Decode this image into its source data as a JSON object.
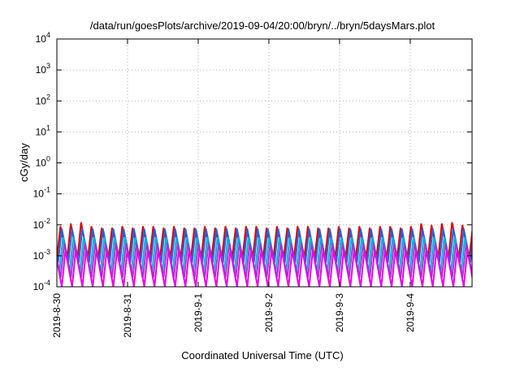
{
  "chart_data": {
    "type": "line",
    "title": "/data/run/goesPlots/archive/2019-09-04/20:00/bryn/../bryn/5daysMars.plot",
    "xlabel": "Coordinated Universal Time (UTC)",
    "ylabel": "cGy/day",
    "yscale": "log",
    "ylim": [
      0.0001,
      10000
    ],
    "y_ticks": [
      {
        "value": 10000,
        "base": "10",
        "exp": "4"
      },
      {
        "value": 1000,
        "base": "10",
        "exp": "3"
      },
      {
        "value": 100,
        "base": "10",
        "exp": "2"
      },
      {
        "value": 10,
        "base": "10",
        "exp": "1"
      },
      {
        "value": 1,
        "base": "10",
        "exp": "0"
      },
      {
        "value": 0.1,
        "base": "10",
        "exp": "-1"
      },
      {
        "value": 0.01,
        "base": "10",
        "exp": "-2"
      },
      {
        "value": 0.001,
        "base": "10",
        "exp": "-3"
      },
      {
        "value": 0.0001,
        "base": "10",
        "exp": "-4"
      }
    ],
    "x_range": [
      "2019-08-30T00:00",
      "2019-09-04T21:00"
    ],
    "x_ticks": [
      "2019-8-30",
      "2019-8-31",
      "2019-9-1",
      "2019-9-2",
      "2019-9-3",
      "2019-9-4"
    ],
    "grid": true,
    "sawtooth_period_hours": 3.5,
    "series": [
      {
        "color": "#e00000",
        "peak": 0.011,
        "trough": 0.0008,
        "peaks": [
          0.008,
          0.009,
          0.011,
          0.012,
          0.009,
          0.008,
          0.008,
          0.009,
          0.008,
          0.009,
          0.009,
          0.008,
          0.009,
          0.008,
          0.008,
          0.009,
          0.008,
          0.009,
          0.008,
          0.009,
          0.009,
          0.008,
          0.009,
          0.008,
          0.009,
          0.009,
          0.008,
          0.008,
          0.009,
          0.008,
          0.009,
          0.008,
          0.009,
          0.009,
          0.008,
          0.009,
          0.011,
          0.01,
          0.011,
          0.012,
          0.01
        ]
      },
      {
        "color": "#2a5fd6",
        "peak": 0.0075,
        "trough": 0.0006
      },
      {
        "color": "#00b0e0",
        "peak": 0.004,
        "trough": 0.0003
      },
      {
        "color": "#9a40c8",
        "peak": 0.0025,
        "trough": 0.0002
      },
      {
        "color": "#e800e8",
        "peak": 0.0015,
        "trough": 0.0001
      }
    ]
  }
}
